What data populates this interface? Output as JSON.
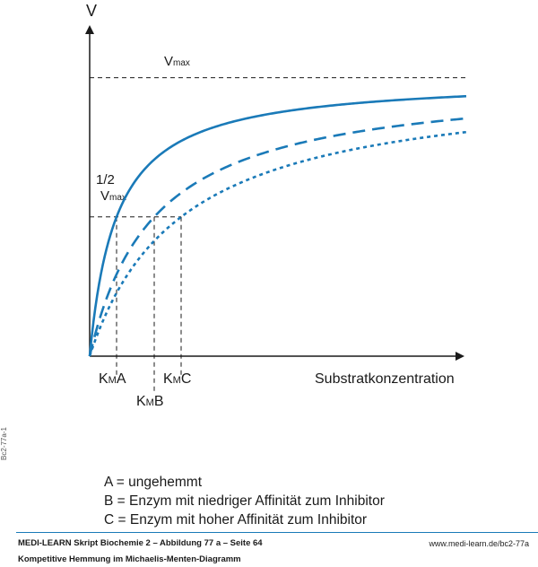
{
  "chart_data": {
    "type": "line",
    "ylabel": "V",
    "xlabel": "Substratkonzentration",
    "xlim": [
      0,
      14
    ],
    "ylim": [
      0,
      1.15
    ],
    "vmax_label": "Vmax",
    "vmax_main": "V",
    "vmax_sub": "max",
    "half_vmax_fraction": "1/2",
    "half_vmax_main": "V",
    "half_vmax_sub": "max",
    "series": [
      {
        "key": "A",
        "km": 1.0,
        "style": "solid"
      },
      {
        "key": "B",
        "km": 2.4,
        "style": "dashed"
      },
      {
        "key": "C",
        "km": 3.4,
        "style": "dotted"
      }
    ],
    "km_labels": [
      {
        "key": "A",
        "main": "K",
        "sub": "M",
        "suffix": "A"
      },
      {
        "key": "B",
        "main": "K",
        "sub": "M",
        "suffix": "B"
      },
      {
        "key": "C",
        "main": "K",
        "sub": "M",
        "suffix": "C"
      }
    ]
  },
  "legend": {
    "items": [
      "A = ungehemmt",
      "B = Enzym mit niedriger Affinität zum Inhibitor",
      "C = Enzym mit hoher Affinität zum Inhibitor"
    ]
  },
  "side_code": "Bc2-77a-1",
  "footer": {
    "left": "MEDI-LEARN Skript Biochemie 2 – Abbildung 77 a – Seite 64",
    "right": "www.medi-learn.de/bc2-77a",
    "subtitle": "Kompetitive Hemmung im Michaelis-Menten-Diagramm"
  },
  "colors": {
    "curve": "#1a7ab8",
    "axis": "#1a1a1a",
    "rule": "#1a7ab8"
  }
}
